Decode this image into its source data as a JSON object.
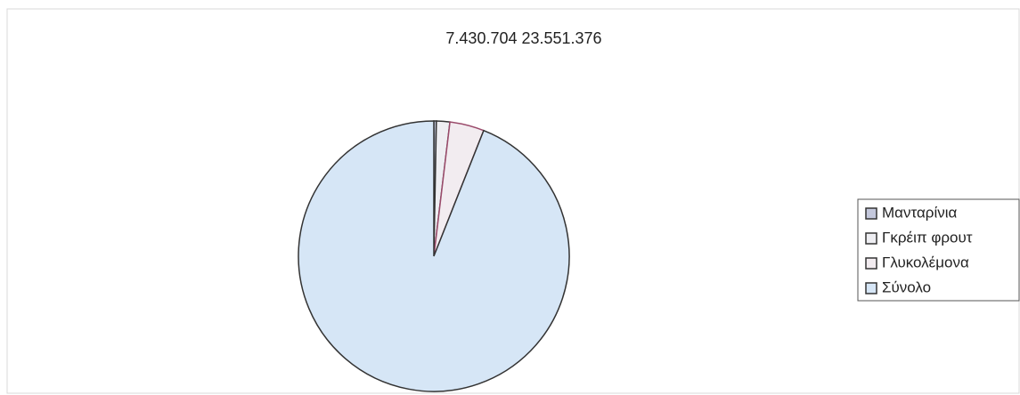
{
  "chart_data": {
    "type": "pie",
    "title": "7.430.704 23.551.376",
    "categories": [
      "Μανταρίνια",
      "Γκρέιπ φρουτ",
      "Γλυκολέμονα",
      "Σύνολο"
    ],
    "values": [
      0.3,
      1.6,
      4.1,
      94
    ],
    "colors": [
      "#c4c8dc",
      "#eeeef2",
      "#f2ecf0",
      "#d6e6f6"
    ],
    "legend": "right"
  }
}
